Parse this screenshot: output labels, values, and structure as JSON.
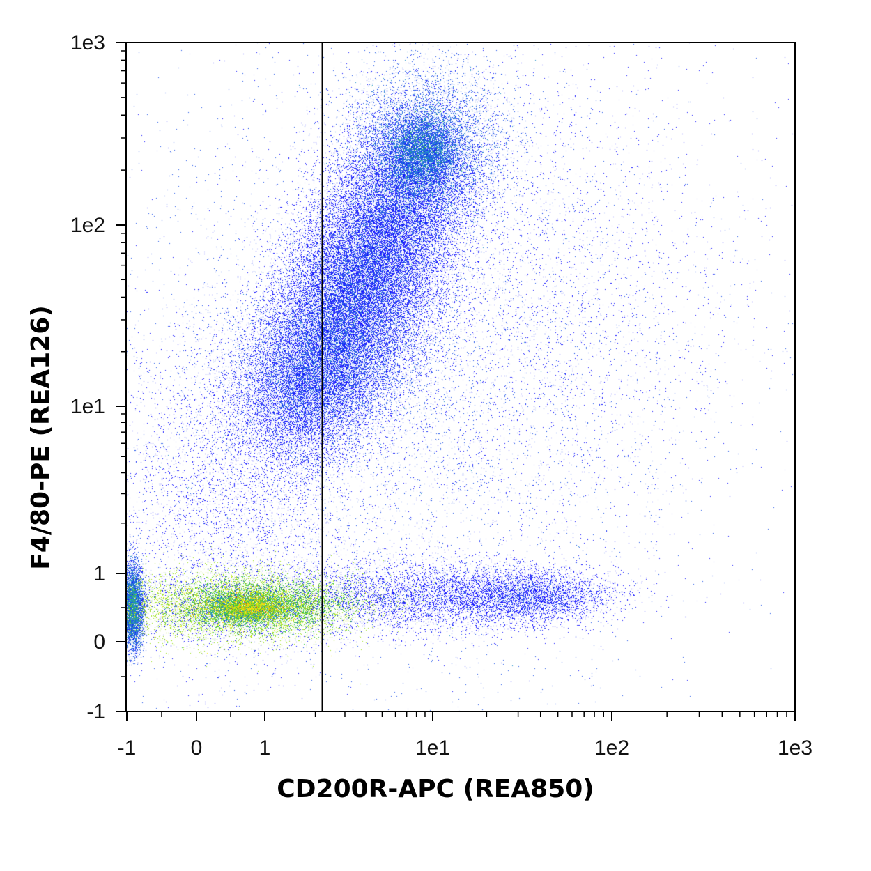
{
  "chart_data": {
    "type": "scatter",
    "plot_style": "density dot plot (pseudocolor)",
    "xlabel": "CD200R-APC (REA850)",
    "ylabel": "F4/80-PE (REA126)",
    "x_scale": "hyperlog (linear near zero, log above)",
    "y_scale": "hyperlog (linear near zero, log above)",
    "xlim": [
      -1,
      1000
    ],
    "ylim": [
      -1,
      1000
    ],
    "x_tick_labels": [
      "-1",
      "0",
      "1",
      "1e1",
      "1e2",
      "1e3"
    ],
    "x_tick_values": [
      -1,
      0,
      1,
      10,
      100,
      1000
    ],
    "y_tick_labels": [
      "-1",
      "0",
      "1",
      "1e1",
      "1e2",
      "1e3"
    ],
    "y_tick_values": [
      -1,
      0,
      1,
      10,
      100,
      1000
    ],
    "gate": {
      "type": "vertical line",
      "x": 2.2
    },
    "density_colors": [
      "#1414ff",
      "#1f6fe0",
      "#28a850",
      "#9ee020",
      "#f5e80c",
      "#e82010"
    ],
    "populations": [
      {
        "description": "F4/80 low / CD200R low cluster",
        "x_center": 0.8,
        "y_center": 0.5,
        "relative_density": 1.0
      },
      {
        "description": "F4/80 high cluster",
        "x_center": 8,
        "y_center": 250,
        "relative_density": 0.35
      },
      {
        "description": "F4/80 intermediate cluster",
        "x_center": 3,
        "y_center": 15,
        "relative_density": 0.3
      },
      {
        "description": "CD200R positive, F4/80 low events",
        "x_center": 30,
        "y_center": 0.6,
        "relative_density": 0.05
      }
    ],
    "grid": false,
    "legend": "none"
  }
}
